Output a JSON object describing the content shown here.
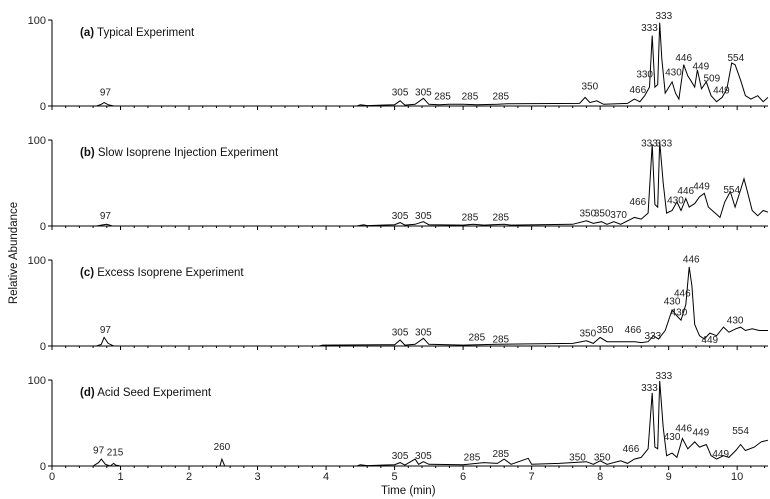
{
  "chart_data": {
    "type": "line",
    "xlabel": "Time (min)",
    "ylabel": "Relative Abundance",
    "xlim": [
      0,
      10.45
    ],
    "ylim": [
      0,
      100
    ],
    "x_ticks": [
      "0",
      "1",
      "2",
      "3",
      "4",
      "5",
      "6",
      "7",
      "8",
      "9",
      "10"
    ],
    "y_ticks": [
      "0",
      "100"
    ],
    "panels": [
      {
        "title_letter": "(a)",
        "title_text": "Typical Experiment",
        "series": [
          [
            0,
            0
          ],
          [
            0.65,
            0
          ],
          [
            0.72,
            2
          ],
          [
            0.76,
            4
          ],
          [
            0.82,
            1.5
          ],
          [
            0.9,
            0
          ],
          [
            4.45,
            0
          ],
          [
            4.5,
            1.5
          ],
          [
            4.6,
            0.5
          ],
          [
            5.0,
            1.5
          ],
          [
            5.08,
            6
          ],
          [
            5.15,
            1
          ],
          [
            5.3,
            2
          ],
          [
            5.42,
            9
          ],
          [
            5.5,
            2
          ],
          [
            5.65,
            1.5
          ],
          [
            5.8,
            2
          ],
          [
            6.0,
            2
          ],
          [
            6.2,
            1.5
          ],
          [
            6.5,
            2
          ],
          [
            6.65,
            2.5
          ],
          [
            7.7,
            3
          ],
          [
            7.78,
            10
          ],
          [
            7.85,
            4
          ],
          [
            7.95,
            6
          ],
          [
            8.05,
            2
          ],
          [
            8.4,
            3
          ],
          [
            8.5,
            8
          ],
          [
            8.58,
            5
          ],
          [
            8.65,
            12
          ],
          [
            8.72,
            22
          ],
          [
            8.76,
            82
          ],
          [
            8.8,
            22
          ],
          [
            8.84,
            25
          ],
          [
            8.87,
            97
          ],
          [
            8.9,
            55
          ],
          [
            8.95,
            15
          ],
          [
            9.05,
            28
          ],
          [
            9.1,
            15
          ],
          [
            9.15,
            8
          ],
          [
            9.22,
            48
          ],
          [
            9.28,
            35
          ],
          [
            9.32,
            30
          ],
          [
            9.38,
            22
          ],
          [
            9.42,
            42
          ],
          [
            9.48,
            20
          ],
          [
            9.55,
            28
          ],
          [
            9.62,
            12
          ],
          [
            9.7,
            5
          ],
          [
            9.78,
            10
          ],
          [
            9.85,
            20
          ],
          [
            9.92,
            50
          ],
          [
            9.97,
            48
          ],
          [
            10.05,
            30
          ],
          [
            10.12,
            12
          ],
          [
            10.2,
            8
          ],
          [
            10.3,
            12
          ],
          [
            10.38,
            5
          ],
          [
            10.45,
            10
          ]
        ],
        "peak_labels": [
          {
            "x": 0.78,
            "y": 10,
            "text": "97"
          },
          {
            "x": 5.08,
            "y": 10,
            "text": "305"
          },
          {
            "x": 5.42,
            "y": 10,
            "text": "305"
          },
          {
            "x": 5.7,
            "y": 5,
            "text": "285"
          },
          {
            "x": 6.1,
            "y": 5,
            "text": "285"
          },
          {
            "x": 6.55,
            "y": 5,
            "text": "285"
          },
          {
            "x": 7.85,
            "y": 17,
            "text": "350"
          },
          {
            "x": 8.55,
            "y": 13,
            "text": "466"
          },
          {
            "x": 8.65,
            "y": 31,
            "text": "330"
          },
          {
            "x": 8.72,
            "y": 85,
            "text": "333"
          },
          {
            "x": 8.93,
            "y": 99,
            "text": "333"
          },
          {
            "x": 9.07,
            "y": 33,
            "text": "430"
          },
          {
            "x": 9.22,
            "y": 50,
            "text": "446"
          },
          {
            "x": 9.47,
            "y": 40,
            "text": "449"
          },
          {
            "x": 9.63,
            "y": 26,
            "text": "509"
          },
          {
            "x": 9.77,
            "y": 12,
            "text": "449"
          },
          {
            "x": 9.98,
            "y": 50,
            "text": "554"
          }
        ]
      },
      {
        "title_letter": "(b)",
        "title_text": "Slow Isoprene Injection Experiment",
        "series": [
          [
            0,
            0
          ],
          [
            0.65,
            0
          ],
          [
            0.72,
            1
          ],
          [
            0.8,
            2
          ],
          [
            0.88,
            0
          ],
          [
            4.45,
            0
          ],
          [
            4.55,
            1.5
          ],
          [
            4.6,
            0.5
          ],
          [
            5.0,
            1.5
          ],
          [
            5.08,
            4
          ],
          [
            5.15,
            1
          ],
          [
            5.3,
            2
          ],
          [
            5.42,
            5
          ],
          [
            5.5,
            1.5
          ],
          [
            6.0,
            1
          ],
          [
            6.15,
            2
          ],
          [
            6.3,
            1
          ],
          [
            6.6,
            2
          ],
          [
            6.7,
            1
          ],
          [
            7.6,
            2
          ],
          [
            7.8,
            6
          ],
          [
            7.9,
            3
          ],
          [
            8.02,
            5
          ],
          [
            8.1,
            2
          ],
          [
            8.2,
            5
          ],
          [
            8.3,
            2
          ],
          [
            8.5,
            10
          ],
          [
            8.6,
            8
          ],
          [
            8.7,
            15
          ],
          [
            8.76,
            95
          ],
          [
            8.8,
            25
          ],
          [
            8.84,
            22
          ],
          [
            8.87,
            98
          ],
          [
            8.92,
            50
          ],
          [
            8.97,
            15
          ],
          [
            9.05,
            18
          ],
          [
            9.12,
            28
          ],
          [
            9.18,
            18
          ],
          [
            9.25,
            32
          ],
          [
            9.3,
            22
          ],
          [
            9.38,
            26
          ],
          [
            9.45,
            34
          ],
          [
            9.52,
            38
          ],
          [
            9.58,
            22
          ],
          [
            9.68,
            15
          ],
          [
            9.75,
            10
          ],
          [
            9.82,
            28
          ],
          [
            9.9,
            40
          ],
          [
            9.97,
            22
          ],
          [
            10.05,
            42
          ],
          [
            10.1,
            55
          ],
          [
            10.15,
            40
          ],
          [
            10.22,
            18
          ],
          [
            10.3,
            12
          ],
          [
            10.38,
            18
          ],
          [
            10.45,
            16
          ]
        ],
        "peak_labels": [
          {
            "x": 0.78,
            "y": 6,
            "text": "97"
          },
          {
            "x": 5.08,
            "y": 6,
            "text": "305"
          },
          {
            "x": 5.42,
            "y": 6,
            "text": "305"
          },
          {
            "x": 6.1,
            "y": 4,
            "text": "285"
          },
          {
            "x": 6.55,
            "y": 4,
            "text": "285"
          },
          {
            "x": 7.82,
            "y": 9,
            "text": "350"
          },
          {
            "x": 8.03,
            "y": 9,
            "text": "350"
          },
          {
            "x": 8.27,
            "y": 7,
            "text": "370"
          },
          {
            "x": 8.55,
            "y": 22,
            "text": "466"
          },
          {
            "x": 8.72,
            "y": 90,
            "text": "333"
          },
          {
            "x": 8.93,
            "y": 90,
            "text": "333"
          },
          {
            "x": 9.1,
            "y": 24,
            "text": "430"
          },
          {
            "x": 9.25,
            "y": 35,
            "text": "446"
          },
          {
            "x": 9.48,
            "y": 40,
            "text": "449"
          },
          {
            "x": 9.92,
            "y": 36,
            "text": "554"
          }
        ]
      },
      {
        "title_letter": "(c)",
        "title_text": "Excess Isoprene Experiment",
        "series": [
          [
            0,
            0
          ],
          [
            0.65,
            0
          ],
          [
            0.72,
            2
          ],
          [
            0.76,
            10
          ],
          [
            0.82,
            3
          ],
          [
            0.9,
            0
          ],
          [
            3.9,
            0
          ],
          [
            3.95,
            1
          ],
          [
            5.0,
            1.5
          ],
          [
            5.08,
            7
          ],
          [
            5.15,
            1
          ],
          [
            5.3,
            2
          ],
          [
            5.42,
            9
          ],
          [
            5.5,
            2
          ],
          [
            6.0,
            1
          ],
          [
            6.5,
            2
          ],
          [
            7.6,
            3
          ],
          [
            7.8,
            6
          ],
          [
            7.9,
            3
          ],
          [
            8.0,
            10
          ],
          [
            8.1,
            5
          ],
          [
            8.3,
            5
          ],
          [
            8.5,
            5
          ],
          [
            8.6,
            4
          ],
          [
            8.7,
            5
          ],
          [
            8.78,
            12
          ],
          [
            8.85,
            8
          ],
          [
            8.95,
            18
          ],
          [
            9.05,
            42
          ],
          [
            9.12,
            35
          ],
          [
            9.18,
            30
          ],
          [
            9.25,
            48
          ],
          [
            9.3,
            92
          ],
          [
            9.34,
            70
          ],
          [
            9.38,
            25
          ],
          [
            9.45,
            12
          ],
          [
            9.52,
            8
          ],
          [
            9.6,
            15
          ],
          [
            9.7,
            12
          ],
          [
            9.8,
            22
          ],
          [
            9.88,
            16
          ],
          [
            9.98,
            20
          ],
          [
            10.05,
            22
          ],
          [
            10.12,
            18
          ],
          [
            10.22,
            20
          ],
          [
            10.32,
            18
          ],
          [
            10.45,
            18
          ]
        ],
        "peak_labels": [
          {
            "x": 0.78,
            "y": 13,
            "text": "97"
          },
          {
            "x": 5.08,
            "y": 10,
            "text": "305"
          },
          {
            "x": 5.42,
            "y": 10,
            "text": "305"
          },
          {
            "x": 6.2,
            "y": 4,
            "text": "285"
          },
          {
            "x": 6.55,
            "y": 2,
            "text": "285"
          },
          {
            "x": 7.82,
            "y": 9,
            "text": "350"
          },
          {
            "x": 8.07,
            "y": 13,
            "text": "350"
          },
          {
            "x": 8.48,
            "y": 13,
            "text": "466"
          },
          {
            "x": 8.77,
            "y": 6,
            "text": "333"
          },
          {
            "x": 9.05,
            "y": 46,
            "text": "430"
          },
          {
            "x": 9.15,
            "y": 33,
            "text": "430"
          },
          {
            "x": 9.2,
            "y": 55,
            "text": "446"
          },
          {
            "x": 9.33,
            "y": 95,
            "text": "446"
          },
          {
            "x": 9.6,
            "y": 1,
            "text": "449"
          },
          {
            "x": 9.97,
            "y": 24,
            "text": "430"
          }
        ]
      },
      {
        "title_letter": "(d)",
        "title_text": "Acid Seed Experiment",
        "series": [
          [
            0,
            0
          ],
          [
            0.6,
            0
          ],
          [
            0.68,
            4
          ],
          [
            0.72,
            8
          ],
          [
            0.78,
            2
          ],
          [
            0.85,
            0
          ],
          [
            0.9,
            3
          ],
          [
            0.93,
            1
          ],
          [
            1.0,
            0
          ],
          [
            2.45,
            0
          ],
          [
            2.48,
            8
          ],
          [
            2.52,
            0
          ],
          [
            4.45,
            0
          ],
          [
            4.5,
            1.5
          ],
          [
            4.6,
            0.5
          ],
          [
            5.0,
            1.5
          ],
          [
            5.08,
            4
          ],
          [
            5.15,
            1
          ],
          [
            5.3,
            8
          ],
          [
            5.35,
            2
          ],
          [
            5.42,
            5
          ],
          [
            5.5,
            2
          ],
          [
            6.0,
            1.5
          ],
          [
            6.3,
            4
          ],
          [
            6.5,
            3
          ],
          [
            6.6,
            8
          ],
          [
            6.7,
            2
          ],
          [
            6.95,
            9
          ],
          [
            7.0,
            2
          ],
          [
            7.4,
            3
          ],
          [
            7.8,
            5
          ],
          [
            7.9,
            2
          ],
          [
            8.0,
            6
          ],
          [
            8.1,
            2
          ],
          [
            8.3,
            6
          ],
          [
            8.4,
            3
          ],
          [
            8.5,
            8
          ],
          [
            8.6,
            10
          ],
          [
            8.7,
            20
          ],
          [
            8.76,
            85
          ],
          [
            8.8,
            22
          ],
          [
            8.84,
            20
          ],
          [
            8.87,
            99
          ],
          [
            8.92,
            45
          ],
          [
            8.97,
            12
          ],
          [
            9.05,
            15
          ],
          [
            9.12,
            10
          ],
          [
            9.2,
            32
          ],
          [
            9.28,
            20
          ],
          [
            9.38,
            28
          ],
          [
            9.45,
            22
          ],
          [
            9.55,
            25
          ],
          [
            9.62,
            12
          ],
          [
            9.7,
            8
          ],
          [
            9.8,
            12
          ],
          [
            9.88,
            10
          ],
          [
            9.98,
            18
          ],
          [
            10.05,
            25
          ],
          [
            10.12,
            18
          ],
          [
            10.25,
            22
          ],
          [
            10.35,
            28
          ],
          [
            10.45,
            30
          ]
        ],
        "peak_labels": [
          {
            "x": 0.68,
            "y": 12,
            "text": "97"
          },
          {
            "x": 0.92,
            "y": 10,
            "text": "215"
          },
          {
            "x": 2.48,
            "y": 16,
            "text": "260"
          },
          {
            "x": 5.08,
            "y": 6,
            "text": "305"
          },
          {
            "x": 5.42,
            "y": 6,
            "text": "305"
          },
          {
            "x": 6.13,
            "y": 4,
            "text": "285"
          },
          {
            "x": 6.55,
            "y": 8,
            "text": "285"
          },
          {
            "x": 7.67,
            "y": 4,
            "text": "350"
          },
          {
            "x": 8.03,
            "y": 4,
            "text": "350"
          },
          {
            "x": 8.45,
            "y": 14,
            "text": "466"
          },
          {
            "x": 8.72,
            "y": 85,
            "text": "333"
          },
          {
            "x": 8.93,
            "y": 99,
            "text": "333"
          },
          {
            "x": 9.05,
            "y": 28,
            "text": "430"
          },
          {
            "x": 9.22,
            "y": 38,
            "text": "446"
          },
          {
            "x": 9.47,
            "y": 33,
            "text": "449"
          },
          {
            "x": 9.76,
            "y": 8,
            "text": "449"
          },
          {
            "x": 10.05,
            "y": 35,
            "text": "554"
          }
        ]
      }
    ]
  }
}
